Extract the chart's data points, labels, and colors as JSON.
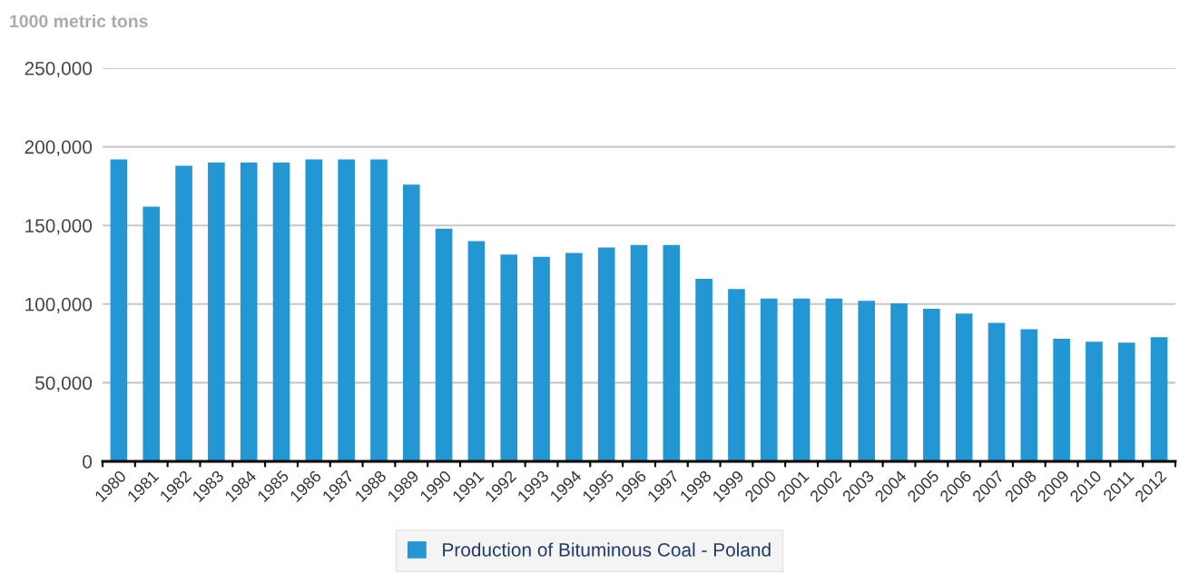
{
  "chart_data": {
    "type": "bar",
    "ylabel": "1000 metric tons",
    "categories": [
      "1980",
      "1981",
      "1982",
      "1983",
      "1984",
      "1985",
      "1986",
      "1987",
      "1988",
      "1989",
      "1990",
      "1991",
      "1992",
      "1993",
      "1994",
      "1995",
      "1996",
      "1997",
      "1998",
      "1999",
      "2000",
      "2001",
      "2002",
      "2003",
      "2004",
      "2005",
      "2006",
      "2007",
      "2008",
      "2009",
      "2010",
      "2011",
      "2012"
    ],
    "series": [
      {
        "name": "Production of Bituminous Coal - Poland",
        "color": "#2397d4",
        "values": [
          192000,
          162000,
          188000,
          190000,
          190000,
          190000,
          192000,
          192000,
          192000,
          176000,
          148000,
          140000,
          131500,
          130000,
          132500,
          136000,
          137500,
          137500,
          116000,
          109500,
          103500,
          103500,
          103500,
          102000,
          100500,
          97000,
          94000,
          88000,
          84000,
          78000,
          76000,
          75500,
          79000
        ]
      }
    ],
    "ylim": [
      0,
      250000
    ],
    "yticks": [
      {
        "value": 0,
        "label": "0"
      },
      {
        "value": 50000,
        "label": "50,000"
      },
      {
        "value": 100000,
        "label": "100,000"
      },
      {
        "value": 150000,
        "label": "150,000"
      },
      {
        "value": 200000,
        "label": "200,000"
      },
      {
        "value": 250000,
        "label": "250,000"
      }
    ],
    "grid": "y",
    "legend": "bottom"
  }
}
